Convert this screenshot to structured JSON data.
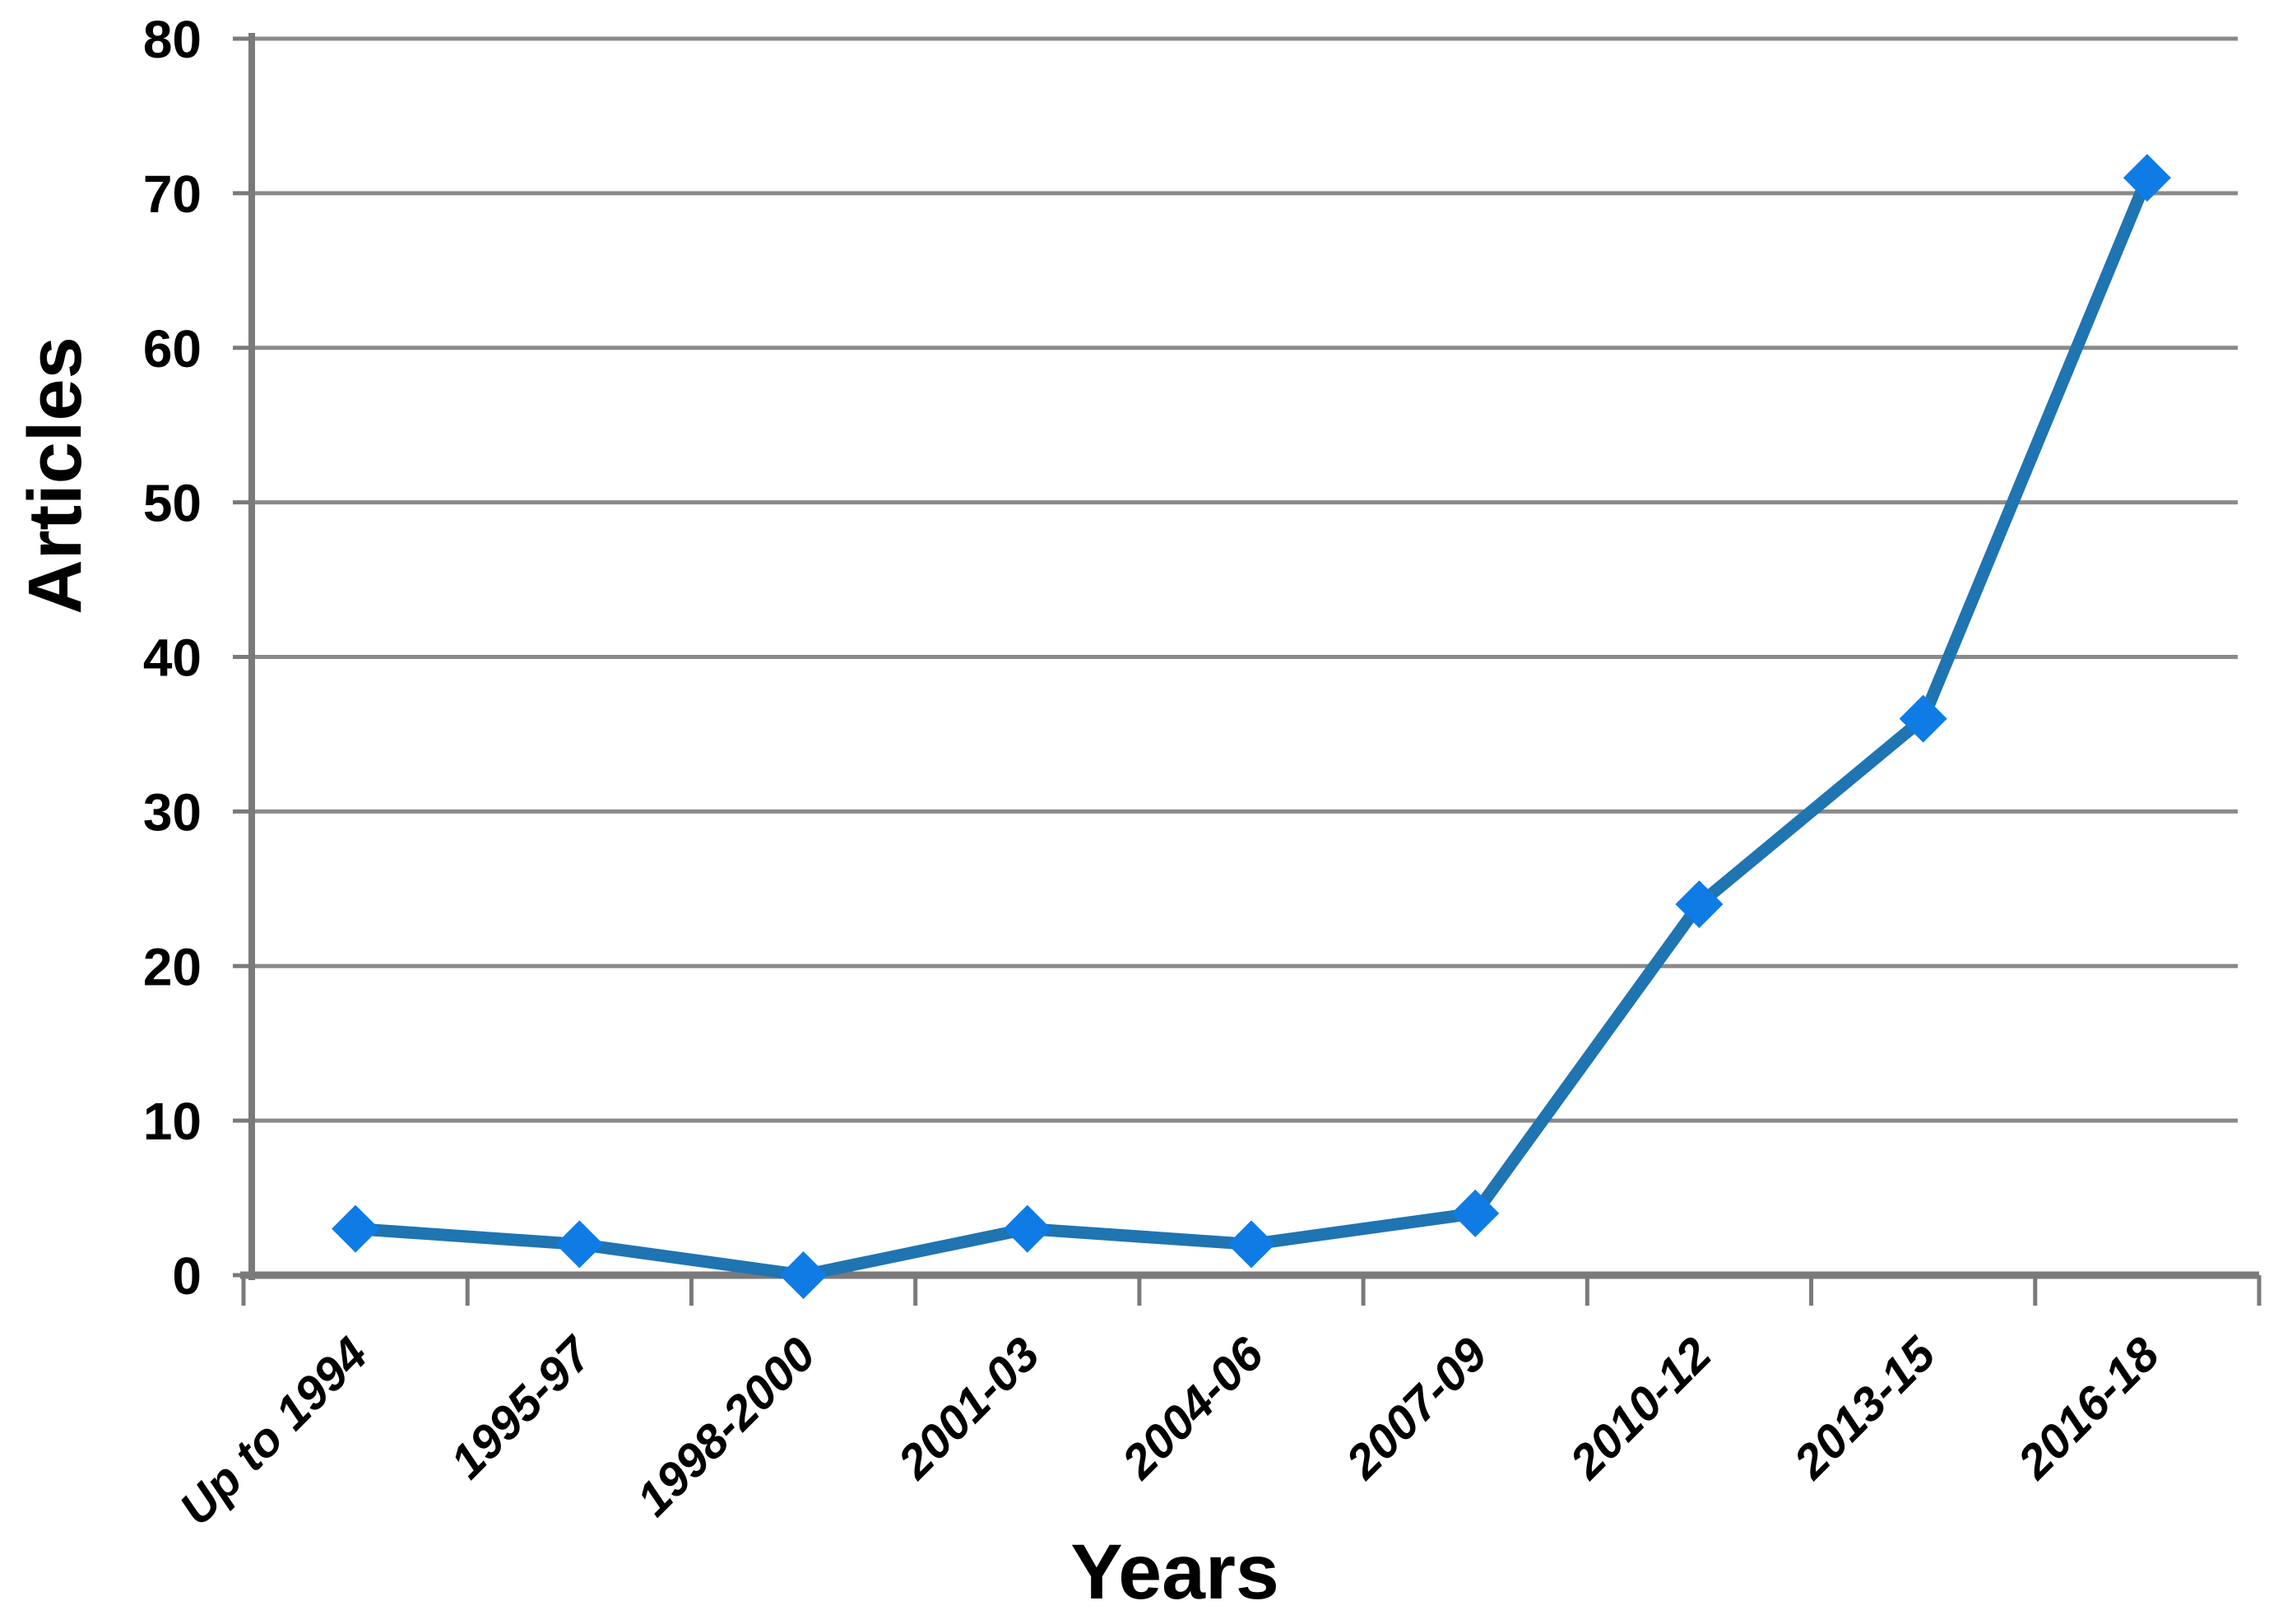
{
  "figure": {
    "background": "#ffffff"
  },
  "chart_data": {
    "type": "line",
    "title": "",
    "xlabel": "Years",
    "ylabel": "Articles",
    "categories": [
      "Up to 1994",
      "1995-97",
      "1998-2000",
      "2001-03",
      "2004-06",
      "2007-09",
      "2010-12",
      "2013-15",
      "2016-18"
    ],
    "series": [
      {
        "name": "Articles",
        "values": [
          3,
          2,
          0,
          3,
          2,
          4,
          24,
          36,
          71
        ]
      }
    ],
    "ylim": [
      0,
      80
    ],
    "yticks": [
      0,
      10,
      20,
      30,
      40,
      50,
      60,
      70,
      80
    ],
    "grid": "horizontal",
    "legend": "none",
    "marker": "diamond",
    "colors": {
      "line": "#1F74B2",
      "marker": "#0F7CE6",
      "gridline": "#8A8A8A",
      "axis": "#7A7A7A",
      "text": "#000000"
    }
  }
}
